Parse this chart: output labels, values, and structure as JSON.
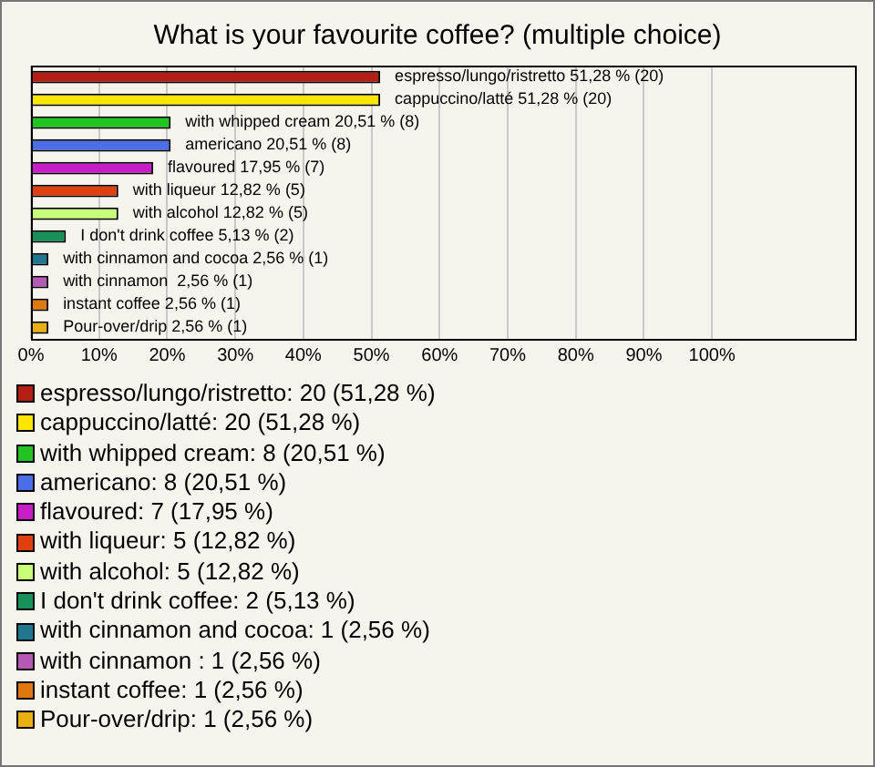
{
  "chart_data": {
    "type": "bar",
    "orientation": "horizontal",
    "title": "What is your favourite coffee? (multiple choice)",
    "categories": [
      "espresso/lungo/ristretto",
      "cappuccino/latté",
      "with whipped cream",
      "americano",
      "flavoured",
      "with liqueur",
      "with alcohol",
      "I don't drink coffee",
      "with cinnamon and cocoa",
      "with cinnamon ",
      "instant coffee",
      "Pour-over/drip"
    ],
    "values": [
      51.28,
      51.28,
      20.51,
      20.51,
      17.95,
      12.82,
      12.82,
      5.13,
      2.56,
      2.56,
      2.56,
      2.56
    ],
    "value_labels": [
      "51,28 % (20)",
      "51,28 % (20)",
      "20,51 % (8)",
      "20,51 % (8)",
      "17,95 % (7)",
      "12,82 % (5)",
      "12,82 % (5)",
      "5,13 % (2)",
      "2,56 % (1)",
      "2,56 % (1)",
      "2,56 % (1)",
      "2,56 % (1)"
    ],
    "colors": [
      "#b41e14",
      "#ffe600",
      "#22c422",
      "#4a6ee8",
      "#c81ec8",
      "#e04010",
      "#c8ff78",
      "#18905a",
      "#207890",
      "#b45ab4",
      "#e07810",
      "#e8b010"
    ],
    "xlim": [
      0,
      121
    ],
    "xticks": [
      {
        "value": 0,
        "label": "0%"
      },
      {
        "value": 10,
        "label": "10%"
      },
      {
        "value": 20,
        "label": "20%"
      },
      {
        "value": 30,
        "label": "30%"
      },
      {
        "value": 40,
        "label": "40%"
      },
      {
        "value": 50,
        "label": "50%"
      },
      {
        "value": 60,
        "label": "60%"
      },
      {
        "value": 70,
        "label": "70%"
      },
      {
        "value": 80,
        "label": "80%"
      },
      {
        "value": 90,
        "label": "90%"
      },
      {
        "value": 100,
        "label": "100%"
      }
    ],
    "grid": "x",
    "tick_labels": "x",
    "annotations": [
      "espresso/lungo/ristretto: 20 (51,28 %)",
      "cappuccino/latté: 20 (51,28 %)",
      "with whipped cream: 8 (20,51 %)",
      "americano: 8 (20,51 %)",
      "flavoured: 7 (17,95 %)",
      "with liqueur: 5 (12,82 %)",
      "with alcohol: 5 (12,82 %)",
      "I don't drink coffee: 2 (5,13 %)",
      "with cinnamon and cocoa: 1 (2,56 %)",
      "with cinnamon : 1 (2,56 %)",
      "instant coffee: 1 (2,56 %)",
      "Pour-over/drip: 1 (2,56 %)"
    ]
  }
}
